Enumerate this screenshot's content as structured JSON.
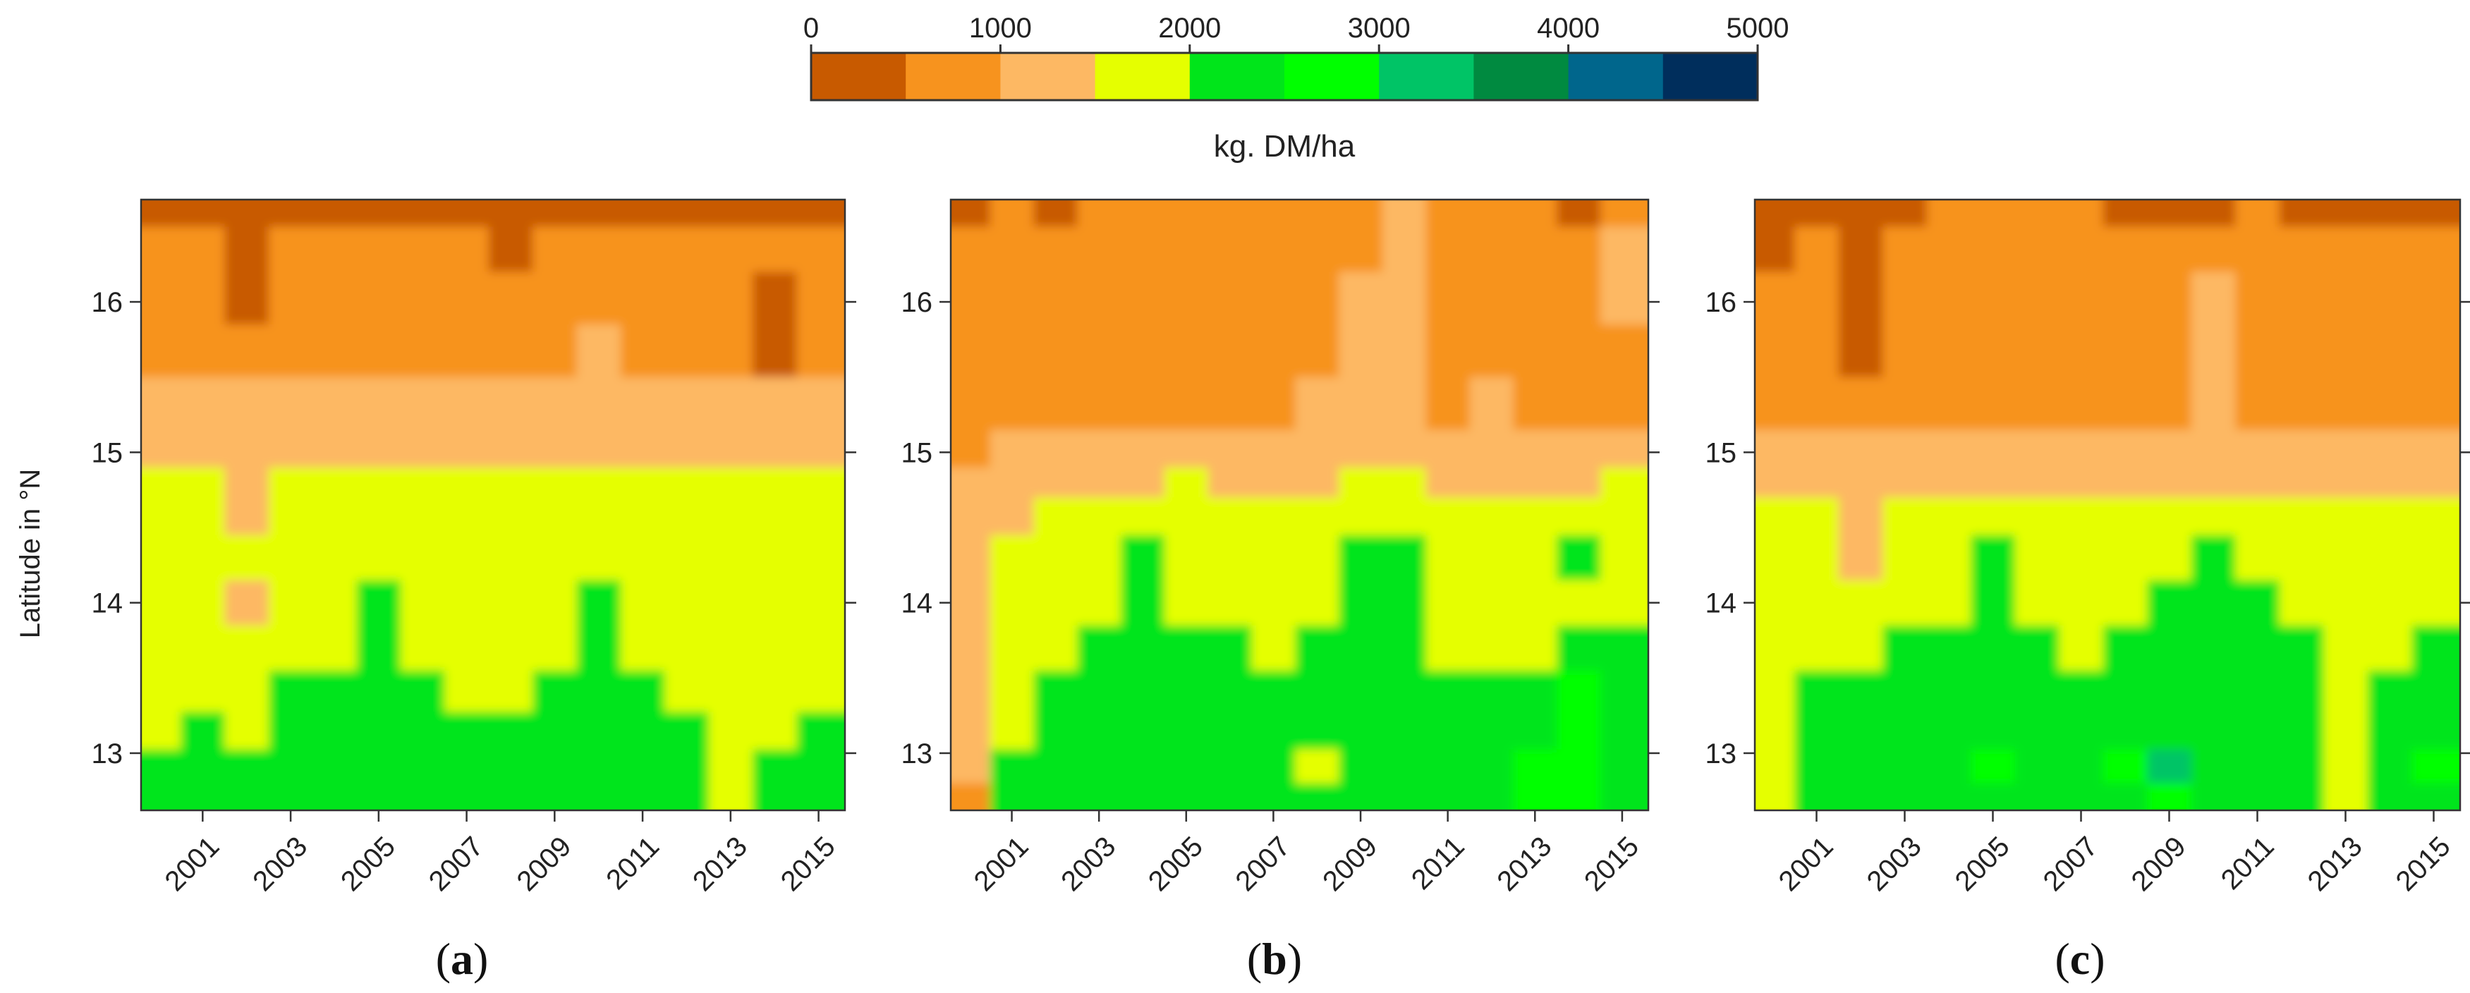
{
  "colors": {
    "bins": [
      "#C85A00",
      "#F7931E",
      "#FDB863",
      "#E5FF00",
      "#00E51A",
      "#00FF00",
      "#00C466",
      "#008A40",
      "#00668C",
      "#002E5C"
    ],
    "axis": "#333333",
    "background": "#ffffff"
  },
  "chart_data": {
    "type": "heatmap",
    "colorbar": {
      "title": "kg. DM/ha",
      "range": [
        0,
        5000
      ],
      "step": 500,
      "tick_values": [
        0,
        1000,
        2000,
        3000,
        4000,
        5000
      ],
      "tick_labels": [
        "0",
        "1000",
        "2000",
        "3000",
        "4000",
        "5000"
      ]
    },
    "ylabel": "Latitude in °N",
    "xlim": [
      1999.6,
      2015.6
    ],
    "ylim": [
      12.62,
      16.68
    ],
    "x_ticks": [
      2001,
      2003,
      2005,
      2007,
      2009,
      2011,
      2013,
      2015
    ],
    "x_tick_labels": [
      "2001",
      "2003",
      "2005",
      "2007",
      "2009",
      "2011",
      "2013",
      "2015"
    ],
    "y_ticks": [
      13,
      14,
      15,
      16
    ],
    "y_tick_labels": [
      "13",
      "14",
      "15",
      "16"
    ],
    "years": [
      2000,
      2001,
      2002,
      2003,
      2004,
      2005,
      2006,
      2007,
      2008,
      2009,
      2010,
      2011,
      2012,
      2013,
      2014,
      2015
    ],
    "latitude_bands": [
      16.6,
      16.4,
      16.0,
      15.7,
      15.3,
      15.0,
      14.8,
      14.6,
      14.3,
      14.0,
      13.7,
      13.4,
      13.15,
      12.9,
      12.7
    ],
    "panels": [
      {
        "label": "a",
        "values": [
          [
            400,
            250,
            250,
            350,
            450,
            350,
            250,
            200,
            350,
            400,
            350,
            350,
            250,
            350,
            250,
            250
          ],
          [
            750,
            650,
            350,
            600,
            750,
            750,
            650,
            700,
            450,
            750,
            700,
            700,
            600,
            550,
            700,
            700
          ],
          [
            750,
            700,
            400,
            650,
            750,
            700,
            700,
            650,
            700,
            750,
            750,
            750,
            750,
            700,
            450,
            700
          ],
          [
            850,
            800,
            550,
            750,
            800,
            750,
            850,
            850,
            800,
            850,
            1050,
            800,
            800,
            750,
            450,
            750
          ],
          [
            1250,
            1250,
            1050,
            1150,
            1200,
            1250,
            1150,
            1150,
            1150,
            1200,
            1300,
            1200,
            1250,
            1150,
            1150,
            1100
          ],
          [
            1300,
            1350,
            1250,
            1400,
            1450,
            1450,
            1350,
            1350,
            1400,
            1450,
            1450,
            1400,
            1450,
            1300,
            1350,
            1350
          ],
          [
            1650,
            1550,
            1400,
            1600,
            1650,
            1600,
            1550,
            1600,
            1600,
            1650,
            1700,
            1600,
            1600,
            1550,
            1550,
            1500
          ],
          [
            1750,
            1700,
            1450,
            1700,
            1750,
            1700,
            1650,
            1700,
            1750,
            1700,
            1800,
            1750,
            1700,
            1650,
            1550,
            1600
          ],
          [
            1800,
            1750,
            1500,
            1800,
            1850,
            1950,
            1750,
            1750,
            1800,
            1800,
            1900,
            1800,
            1750,
            1700,
            1700,
            1700
          ],
          [
            1850,
            1800,
            1450,
            1850,
            1900,
            2150,
            1850,
            1850,
            1800,
            1850,
            2050,
            1900,
            1850,
            1800,
            1800,
            1800
          ],
          [
            1800,
            1850,
            1750,
            1900,
            1950,
            2150,
            1950,
            1900,
            1850,
            1950,
            2100,
            1950,
            1900,
            1850,
            1850,
            1850
          ],
          [
            1850,
            1900,
            1850,
            2050,
            2000,
            2150,
            2050,
            1950,
            1900,
            2050,
            2100,
            2050,
            1950,
            1900,
            1900,
            1900
          ],
          [
            1900,
            2050,
            1900,
            2100,
            2100,
            2200,
            2150,
            2150,
            2150,
            2150,
            2150,
            2150,
            2050,
            1950,
            1950,
            2150
          ],
          [
            2050,
            2100,
            2050,
            2200,
            2150,
            2350,
            2250,
            2350,
            2400,
            2200,
            2200,
            2200,
            2150,
            1950,
            2050,
            2250
          ],
          [
            2100,
            2150,
            2100,
            2150,
            2150,
            2200,
            2200,
            2250,
            2250,
            2150,
            2200,
            2150,
            2100,
            1950,
            2050,
            2150
          ]
        ]
      },
      {
        "label": "b",
        "values": [
          [
            350,
            800,
            400,
            800,
            800,
            800,
            800,
            800,
            800,
            800,
            1100,
            800,
            800,
            800,
            450,
            850
          ],
          [
            800,
            800,
            750,
            800,
            800,
            800,
            800,
            800,
            800,
            800,
            1100,
            800,
            800,
            800,
            800,
            1050
          ],
          [
            800,
            800,
            800,
            800,
            800,
            800,
            800,
            800,
            800,
            1050,
            1100,
            800,
            800,
            800,
            800,
            1050
          ],
          [
            800,
            800,
            800,
            800,
            800,
            800,
            800,
            800,
            850,
            1050,
            1100,
            850,
            800,
            800,
            800,
            800
          ],
          [
            800,
            800,
            800,
            800,
            800,
            850,
            850,
            800,
            1050,
            1050,
            1100,
            850,
            1050,
            900,
            800,
            850
          ],
          [
            850,
            1050,
            1050,
            1100,
            1150,
            1250,
            1150,
            1100,
            1150,
            1250,
            1250,
            1200,
            1200,
            1150,
            1150,
            1150
          ],
          [
            1100,
            1350,
            1350,
            1350,
            1400,
            1550,
            1350,
            1350,
            1450,
            1650,
            1600,
            1450,
            1450,
            1350,
            1350,
            1550
          ],
          [
            1300,
            1450,
            1550,
            1750,
            1750,
            1850,
            1750,
            1650,
            1700,
            1850,
            1750,
            1700,
            1650,
            1600,
            1600,
            1700
          ],
          [
            1350,
            1550,
            1700,
            1800,
            2150,
            1950,
            1800,
            1800,
            1850,
            2200,
            2250,
            1850,
            1800,
            1800,
            2150,
            1850
          ],
          [
            1350,
            1550,
            1850,
            1900,
            2150,
            1850,
            1900,
            1850,
            1950,
            2300,
            2300,
            1900,
            1850,
            1800,
            1950,
            1900
          ],
          [
            1300,
            1600,
            1950,
            2150,
            2200,
            2100,
            2150,
            1950,
            2100,
            2300,
            2250,
            1900,
            1850,
            1850,
            2050,
            2100
          ],
          [
            1250,
            1800,
            2150,
            2350,
            2300,
            2300,
            2300,
            2150,
            2250,
            2300,
            2300,
            2200,
            2100,
            2150,
            2600,
            2350
          ],
          [
            1150,
            1900,
            2250,
            2350,
            2350,
            2350,
            2300,
            2300,
            2350,
            2300,
            2300,
            2300,
            2300,
            2300,
            2800,
            2400
          ],
          [
            1100,
            2050,
            2300,
            2350,
            2350,
            2400,
            2350,
            2400,
            1950,
            2350,
            2400,
            2350,
            2350,
            2550,
            2900,
            2200
          ],
          [
            600,
            2100,
            2300,
            2350,
            2350,
            2350,
            2350,
            2350,
            2350,
            2350,
            2350,
            2350,
            2350,
            2600,
            2800,
            2350
          ]
        ]
      },
      {
        "label": "c",
        "values": [
          [
            300,
            450,
            250,
            400,
            500,
            650,
            500,
            500,
            350,
            350,
            450,
            500,
            450,
            450,
            300,
            350
          ],
          [
            350,
            700,
            350,
            700,
            650,
            550,
            700,
            700,
            550,
            700,
            800,
            700,
            700,
            700,
            500,
            700
          ],
          [
            700,
            600,
            300,
            700,
            800,
            800,
            800,
            700,
            750,
            750,
            1100,
            700,
            750,
            700,
            500,
            700
          ],
          [
            750,
            750,
            400,
            800,
            800,
            800,
            800,
            800,
            800,
            800,
            1100,
            800,
            800,
            800,
            750,
            800
          ],
          [
            800,
            800,
            800,
            800,
            800,
            850,
            800,
            850,
            800,
            850,
            1050,
            800,
            800,
            800,
            800,
            800
          ],
          [
            1250,
            1250,
            1150,
            1100,
            1150,
            1250,
            1200,
            1200,
            1200,
            1200,
            1300,
            1250,
            1250,
            1150,
            1100,
            1150
          ],
          [
            1350,
            1350,
            1250,
            1350,
            1400,
            1400,
            1350,
            1400,
            1400,
            1450,
            1450,
            1450,
            1400,
            1350,
            1300,
            1350
          ],
          [
            1700,
            1650,
            1450,
            1700,
            1750,
            1850,
            1650,
            1700,
            1750,
            1800,
            1850,
            1800,
            1650,
            1600,
            1550,
            1600
          ],
          [
            1750,
            1750,
            1400,
            1750,
            1850,
            2150,
            1850,
            1800,
            1800,
            1900,
            2150,
            1950,
            1800,
            1700,
            1700,
            1800
          ],
          [
            1800,
            1800,
            1500,
            1850,
            1950,
            2200,
            1900,
            1850,
            1900,
            2000,
            2200,
            2000,
            1900,
            1800,
            1800,
            1900
          ],
          [
            1800,
            1850,
            1750,
            2050,
            2150,
            2250,
            2100,
            1900,
            2000,
            2150,
            2200,
            2100,
            2000,
            1800,
            1850,
            2050
          ],
          [
            1850,
            2150,
            2050,
            2150,
            2150,
            2250,
            2250,
            2100,
            2150,
            2150,
            2250,
            2150,
            2100,
            1850,
            2100,
            2150
          ],
          [
            1850,
            2200,
            2150,
            2200,
            2200,
            2350,
            2250,
            2200,
            2250,
            2300,
            2300,
            2250,
            2350,
            1900,
            2150,
            2250
          ],
          [
            1850,
            2250,
            2250,
            2250,
            2300,
            2900,
            2350,
            2250,
            2600,
            3000,
            2400,
            2300,
            2350,
            1950,
            2250,
            2600
          ],
          [
            1900,
            2300,
            2300,
            2300,
            2300,
            2400,
            2300,
            2300,
            2450,
            2650,
            2400,
            2300,
            2300,
            1950,
            2250,
            2350
          ]
        ]
      }
    ]
  }
}
